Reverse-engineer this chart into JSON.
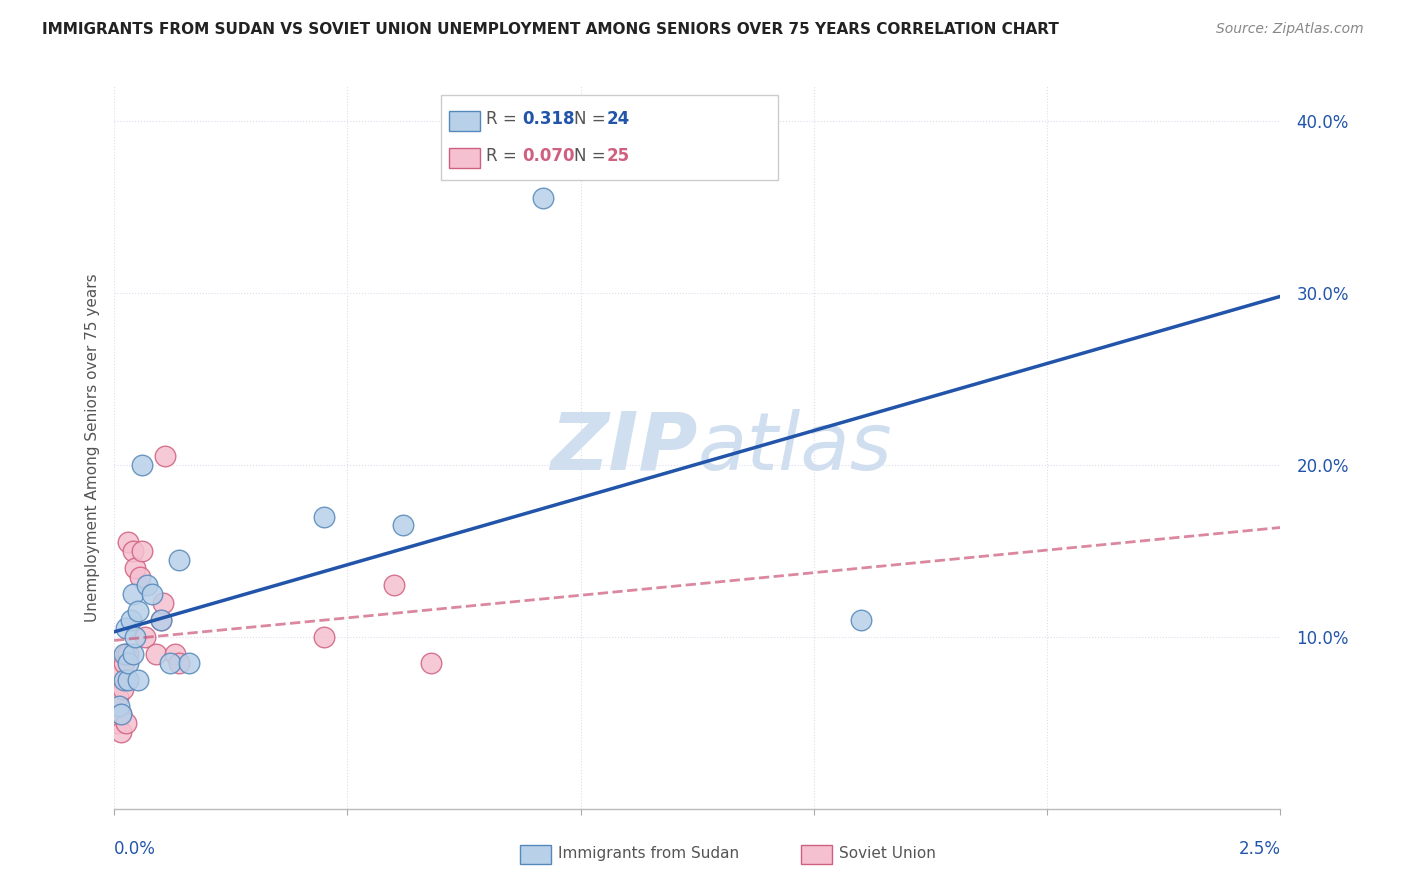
{
  "title": "IMMIGRANTS FROM SUDAN VS SOVIET UNION UNEMPLOYMENT AMONG SENIORS OVER 75 YEARS CORRELATION CHART",
  "source": "Source: ZipAtlas.com",
  "ylabel": "Unemployment Among Seniors over 75 years",
  "y_ticks": [
    0.0,
    0.1,
    0.2,
    0.3,
    0.4
  ],
  "y_tick_labels": [
    "",
    "10.0%",
    "20.0%",
    "30.0%",
    "40.0%"
  ],
  "x_range": [
    0.0,
    0.025
  ],
  "y_range": [
    0.0,
    0.42
  ],
  "sudan_R": 0.318,
  "sudan_N": 24,
  "soviet_R": 0.07,
  "soviet_N": 25,
  "sudan_color": "#b8d0e8",
  "sudan_edge": "#5588bb",
  "soviet_color": "#f5c0cf",
  "soviet_edge": "#d06080",
  "sudan_line_color": "#2255aa",
  "soviet_line_color": "#cc5577",
  "watermark_color": "#d0dff0",
  "background_color": "#ffffff",
  "grid_color": "#ddddee",
  "sudan_x": [
    0.0001,
    0.00015,
    0.0002,
    0.0002,
    0.00025,
    0.0003,
    0.0003,
    0.00035,
    0.0004,
    0.0004,
    0.00045,
    0.0005,
    0.0005,
    0.0006,
    0.0007,
    0.0008,
    0.001,
    0.0012,
    0.0014,
    0.0016,
    0.0045,
    0.0062,
    0.0092,
    0.016
  ],
  "sudan_y": [
    0.06,
    0.055,
    0.075,
    0.09,
    0.105,
    0.075,
    0.085,
    0.11,
    0.09,
    0.125,
    0.1,
    0.075,
    0.115,
    0.2,
    0.13,
    0.125,
    0.11,
    0.085,
    0.145,
    0.085,
    0.17,
    0.165,
    0.355,
    0.11
  ],
  "soviet_x": [
    5e-05,
    8e-05,
    0.0001,
    0.00015,
    0.00015,
    0.00018,
    0.0002,
    0.00025,
    0.00025,
    0.0003,
    0.0003,
    0.0004,
    0.00045,
    0.00055,
    0.0006,
    0.00065,
    0.0009,
    0.001,
    0.00105,
    0.0011,
    0.0013,
    0.0014,
    0.0045,
    0.006,
    0.0068
  ],
  "soviet_y": [
    0.05,
    0.065,
    0.08,
    0.045,
    0.055,
    0.07,
    0.085,
    0.05,
    0.09,
    0.09,
    0.155,
    0.15,
    0.14,
    0.135,
    0.15,
    0.1,
    0.09,
    0.11,
    0.12,
    0.205,
    0.09,
    0.085,
    0.1,
    0.13,
    0.085
  ]
}
